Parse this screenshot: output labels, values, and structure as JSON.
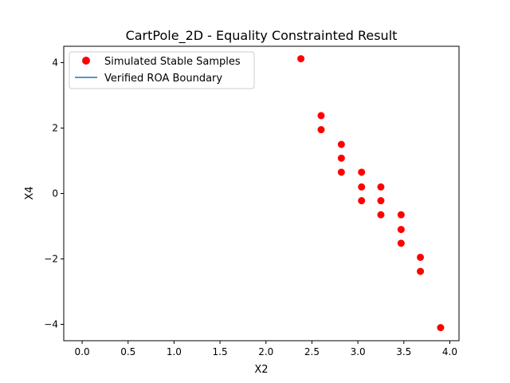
{
  "chart_data": {
    "type": "scatter",
    "title": "CartPole_2D - Equality Constrainted Result",
    "xlabel": "X2",
    "ylabel": "X4",
    "xlim": [
      -0.2,
      4.1
    ],
    "ylim": [
      -4.5,
      4.5
    ],
    "xticks": [
      0.0,
      0.5,
      1.0,
      1.5,
      2.0,
      2.5,
      3.0,
      3.5,
      4.0
    ],
    "xtick_labels": [
      "0.0",
      "0.5",
      "1.0",
      "1.5",
      "2.0",
      "2.5",
      "3.0",
      "3.5",
      "4.0"
    ],
    "yticks": [
      -4,
      -2,
      0,
      2,
      4
    ],
    "ytick_labels": [
      "−4",
      "−2",
      "0",
      "2",
      "4"
    ],
    "grid": false,
    "legend_placement": "upper-left",
    "series": [
      {
        "name": "Simulated Stable Samples",
        "kind": "scatter",
        "color": "#ff0000",
        "points": [
          [
            2.38,
            4.12
          ],
          [
            2.6,
            2.38
          ],
          [
            2.6,
            1.95
          ],
          [
            2.82,
            1.5
          ],
          [
            2.82,
            1.08
          ],
          [
            2.82,
            0.65
          ],
          [
            3.04,
            0.65
          ],
          [
            3.04,
            0.2
          ],
          [
            3.04,
            -0.22
          ],
          [
            3.25,
            0.2
          ],
          [
            3.25,
            -0.22
          ],
          [
            3.25,
            -0.65
          ],
          [
            3.47,
            -0.65
          ],
          [
            3.47,
            -1.1
          ],
          [
            3.47,
            -1.52
          ],
          [
            3.68,
            -1.95
          ],
          [
            3.68,
            -2.38
          ],
          [
            3.9,
            -4.1
          ]
        ]
      },
      {
        "name": "Verified ROA Boundary",
        "kind": "line",
        "color": "#1f77b4",
        "points": []
      }
    ]
  }
}
